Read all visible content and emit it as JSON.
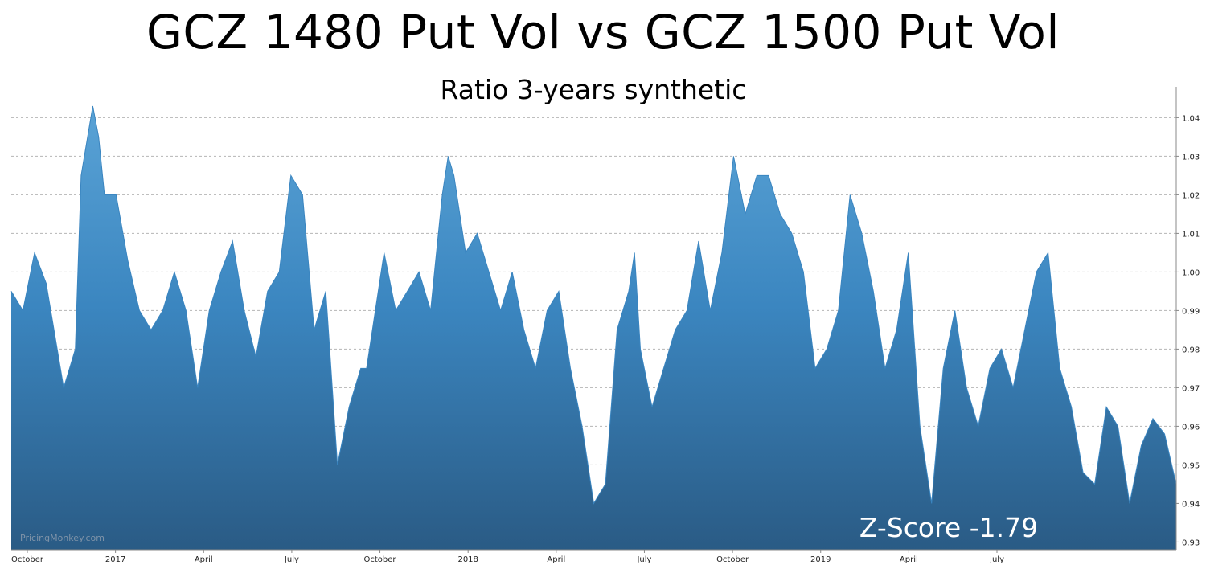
{
  "chart_data": {
    "type": "area",
    "title": "GCZ 1480 Put Vol vs GCZ 1500 Put Vol",
    "subtitle": "Ratio 3-years synthetic",
    "annotation": "Z-Score -1.79",
    "watermark": "PricingMonkey.com",
    "x_tick_labels": [
      "October",
      "2017",
      "April",
      "July",
      "October",
      "2018",
      "April",
      "July",
      "October",
      "2019",
      "April",
      "July"
    ],
    "y_ticks": [
      "0.93",
      "0.94",
      "0.95",
      "0.96",
      "0.97",
      "0.98",
      "0.99",
      "1.00",
      "1.01",
      "1.02",
      "1.03",
      "1.04"
    ],
    "ylim": [
      0.928,
      1.048
    ],
    "y_axis_side": "right",
    "grid": "horizontal dashed",
    "colors": {
      "fill_top": "#4d98cf",
      "fill_bottom": "#2a5b85",
      "line": "#3a85c0"
    },
    "x": [
      0,
      0.01,
      0.02,
      0.03,
      0.045,
      0.05,
      0.055,
      0.06,
      0.07,
      0.075,
      0.08,
      0.09,
      0.1,
      0.11,
      0.12,
      0.13,
      0.14,
      0.15,
      0.16,
      0.17,
      0.18,
      0.19,
      0.2,
      0.21,
      0.22,
      0.23,
      0.24,
      0.25,
      0.26,
      0.27,
      0.28,
      0.29,
      0.3,
      0.305,
      0.31,
      0.32,
      0.33,
      0.34,
      0.35,
      0.36,
      0.37,
      0.375,
      0.38,
      0.39,
      0.4,
      0.41,
      0.42,
      0.43,
      0.44,
      0.45,
      0.46,
      0.47,
      0.48,
      0.49,
      0.5,
      0.51,
      0.52,
      0.53,
      0.535,
      0.54,
      0.55,
      0.56,
      0.57,
      0.58,
      0.59,
      0.6,
      0.61,
      0.62,
      0.63,
      0.64,
      0.65,
      0.66,
      0.67,
      0.68,
      0.69,
      0.7,
      0.71,
      0.72,
      0.73,
      0.74,
      0.75,
      0.76,
      0.77,
      0.78,
      0.79,
      0.8,
      0.81,
      0.82,
      0.83,
      0.84,
      0.85,
      0.86,
      0.87,
      0.88,
      0.89,
      0.9,
      0.91,
      0.92,
      0.93,
      0.94,
      0.95,
      0.96,
      0.97,
      0.98,
      0.99,
      1.0
    ],
    "values": [
      0.995,
      0.99,
      1.005,
      0.997,
      0.97,
      0.975,
      0.98,
      1.025,
      1.043,
      1.035,
      1.02,
      1.02,
      1.003,
      0.99,
      0.985,
      0.99,
      1.0,
      0.99,
      0.97,
      0.99,
      1.0,
      1.008,
      0.99,
      0.978,
      0.995,
      1.0,
      1.025,
      1.02,
      0.985,
      0.995,
      0.95,
      0.965,
      0.975,
      0.975,
      0.985,
      1.005,
      0.99,
      0.995,
      1.0,
      0.99,
      1.02,
      1.03,
      1.025,
      1.005,
      1.01,
      1.0,
      0.99,
      1.0,
      0.985,
      0.975,
      0.99,
      0.995,
      0.975,
      0.96,
      0.94,
      0.945,
      0.985,
      0.995,
      1.005,
      0.98,
      0.965,
      0.975,
      0.985,
      0.99,
      1.008,
      0.99,
      1.005,
      1.03,
      1.015,
      1.025,
      1.025,
      1.015,
      1.01,
      1.0,
      0.975,
      0.98,
      0.99,
      1.02,
      1.01,
      0.995,
      0.975,
      0.985,
      1.005,
      0.96,
      0.94,
      0.975,
      0.99,
      0.97,
      0.96,
      0.975,
      0.98,
      0.97,
      0.985,
      1.0,
      1.005,
      0.975,
      0.965,
      0.948,
      0.945,
      0.965,
      0.96,
      0.94,
      0.955,
      0.962,
      0.958,
      0.945
    ]
  }
}
